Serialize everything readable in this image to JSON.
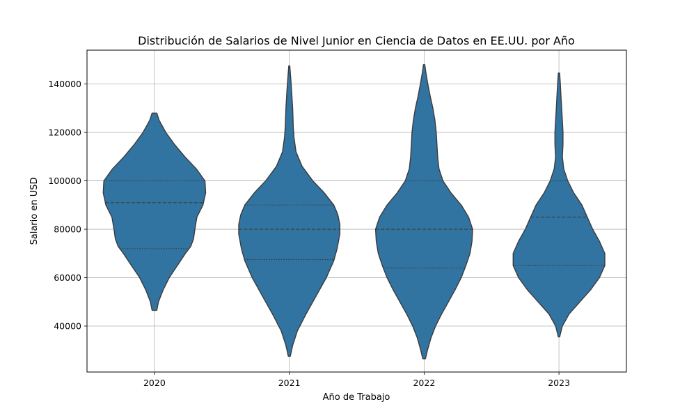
{
  "chart_data": {
    "type": "violin",
    "title": "Distribución de Salarios de Nivel Junior en Ciencia de Datos en EE.UU. por Año",
    "xlabel": "Año de Trabajo",
    "ylabel": "Salario en USD",
    "ylim": [
      21000,
      154000
    ],
    "yticks": [
      40000,
      60000,
      80000,
      100000,
      120000,
      140000
    ],
    "grid": true,
    "fill_color": "#3274a1",
    "edge_color": "#3b3b3b",
    "categories": [
      "2020",
      "2021",
      "2022",
      "2023"
    ],
    "violins": [
      {
        "category": "2020",
        "min": 46500,
        "max": 128000,
        "quartiles": [
          72000,
          91000,
          100000
        ],
        "profile": [
          [
            46500,
            0.035
          ],
          [
            50000,
            0.06
          ],
          [
            55000,
            0.13
          ],
          [
            60000,
            0.22
          ],
          [
            65000,
            0.34
          ],
          [
            70000,
            0.46
          ],
          [
            73000,
            0.54
          ],
          [
            76000,
            0.58
          ],
          [
            80000,
            0.6
          ],
          [
            85000,
            0.63
          ],
          [
            90000,
            0.72
          ],
          [
            95000,
            0.76
          ],
          [
            100000,
            0.75
          ],
          [
            105000,
            0.62
          ],
          [
            110000,
            0.45
          ],
          [
            115000,
            0.3
          ],
          [
            120000,
            0.17
          ],
          [
            125000,
            0.07
          ],
          [
            128000,
            0.035
          ]
        ]
      },
      {
        "category": "2021",
        "min": 27500,
        "max": 147500,
        "quartiles": [
          67500,
          80000,
          90000
        ],
        "profile": [
          [
            27500,
            0.015
          ],
          [
            32000,
            0.05
          ],
          [
            38000,
            0.12
          ],
          [
            45000,
            0.25
          ],
          [
            52000,
            0.39
          ],
          [
            60000,
            0.55
          ],
          [
            67000,
            0.66
          ],
          [
            72000,
            0.71
          ],
          [
            78000,
            0.75
          ],
          [
            82000,
            0.75
          ],
          [
            86000,
            0.72
          ],
          [
            90000,
            0.66
          ],
          [
            95000,
            0.52
          ],
          [
            100000,
            0.35
          ],
          [
            106000,
            0.19
          ],
          [
            112000,
            0.1
          ],
          [
            118000,
            0.07
          ],
          [
            122000,
            0.06
          ],
          [
            130000,
            0.05
          ],
          [
            137000,
            0.035
          ],
          [
            143000,
            0.02
          ],
          [
            147500,
            0.008
          ]
        ]
      },
      {
        "category": "2022",
        "min": 26500,
        "max": 148000,
        "quartiles": [
          64000,
          80000,
          100000
        ],
        "profile": [
          [
            26500,
            0.02
          ],
          [
            30000,
            0.05
          ],
          [
            35000,
            0.1
          ],
          [
            40000,
            0.17
          ],
          [
            45000,
            0.26
          ],
          [
            50000,
            0.36
          ],
          [
            55000,
            0.46
          ],
          [
            60000,
            0.55
          ],
          [
            65000,
            0.62
          ],
          [
            70000,
            0.68
          ],
          [
            75000,
            0.71
          ],
          [
            80000,
            0.72
          ],
          [
            85000,
            0.66
          ],
          [
            90000,
            0.55
          ],
          [
            95000,
            0.4
          ],
          [
            100000,
            0.28
          ],
          [
            105000,
            0.22
          ],
          [
            110000,
            0.2
          ],
          [
            115000,
            0.19
          ],
          [
            120000,
            0.18
          ],
          [
            125000,
            0.16
          ],
          [
            130000,
            0.13
          ],
          [
            135000,
            0.09
          ],
          [
            140000,
            0.055
          ],
          [
            145000,
            0.025
          ],
          [
            148000,
            0.01
          ]
        ]
      },
      {
        "category": "2023",
        "min": 35500,
        "max": 144500,
        "quartiles": [
          65000,
          85000,
          100000
        ],
        "profile": [
          [
            35500,
            0.01
          ],
          [
            40000,
            0.05
          ],
          [
            45000,
            0.15
          ],
          [
            50000,
            0.31
          ],
          [
            55000,
            0.47
          ],
          [
            60000,
            0.6
          ],
          [
            65000,
            0.68
          ],
          [
            70000,
            0.68
          ],
          [
            75000,
            0.6
          ],
          [
            80000,
            0.5
          ],
          [
            85000,
            0.42
          ],
          [
            90000,
            0.34
          ],
          [
            95000,
            0.22
          ],
          [
            100000,
            0.13
          ],
          [
            105000,
            0.07
          ],
          [
            110000,
            0.05
          ],
          [
            115000,
            0.06
          ],
          [
            120000,
            0.06
          ],
          [
            125000,
            0.05
          ],
          [
            130000,
            0.04
          ],
          [
            135000,
            0.03
          ],
          [
            140000,
            0.02
          ],
          [
            144500,
            0.01
          ]
        ]
      }
    ]
  }
}
